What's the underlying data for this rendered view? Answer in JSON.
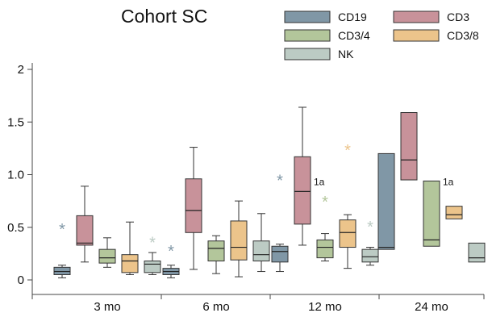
{
  "chart_data": {
    "type": "box",
    "title": "Cohort SC",
    "xlabel": "",
    "ylabel": "",
    "categories": [
      "3 mo",
      "6 mo",
      "12 mo",
      "24 mo"
    ],
    "ylim": [
      -0.1,
      2.05
    ],
    "yticks": [
      0,
      0.5,
      1.0,
      1.5,
      2
    ],
    "ytick_labels": [
      "0",
      "0.5",
      "1.0",
      "1.5",
      "2"
    ],
    "legend_position": "top-right",
    "series": [
      {
        "name": "CD19",
        "color": "#8097a6",
        "boxes": [
          {
            "min": 0.02,
            "q1": 0.05,
            "median": 0.08,
            "q3": 0.12,
            "max": 0.14
          },
          {
            "min": 0.02,
            "q1": 0.05,
            "median": 0.08,
            "q3": 0.11,
            "max": 0.14
          },
          {
            "min": 0.08,
            "q1": 0.17,
            "median": 0.27,
            "q3": 0.32,
            "max": 0.34
          },
          {
            "min": 0.29,
            "q1": 0.29,
            "median": 0.31,
            "q3": 1.2,
            "max": 1.2
          }
        ]
      },
      {
        "name": "CD3",
        "color": "#c8929a",
        "boxes": [
          {
            "min": 0.17,
            "q1": 0.33,
            "median": 0.35,
            "q3": 0.61,
            "max": 0.89
          },
          {
            "min": 0.1,
            "q1": 0.45,
            "median": 0.66,
            "q3": 0.96,
            "max": 1.26
          },
          {
            "min": 0.33,
            "q1": 0.53,
            "median": 0.84,
            "q3": 1.17,
            "max": 1.64
          },
          {
            "min": 0.95,
            "q1": 0.95,
            "median": 1.14,
            "q3": 1.59,
            "max": 1.59
          }
        ]
      },
      {
        "name": "CD3/4",
        "color": "#b3c69b",
        "boxes": [
          {
            "min": 0.12,
            "q1": 0.16,
            "median": 0.21,
            "q3": 0.29,
            "max": 0.4
          },
          {
            "min": 0.06,
            "q1": 0.18,
            "median": 0.3,
            "q3": 0.37,
            "max": 0.42
          },
          {
            "min": 0.18,
            "q1": 0.21,
            "median": 0.31,
            "q3": 0.38,
            "max": 0.44
          },
          {
            "min": 0.32,
            "q1": 0.32,
            "median": 0.38,
            "q3": 0.94,
            "max": 0.94
          }
        ]
      },
      {
        "name": "CD3/8",
        "color": "#ecc48b",
        "boxes": [
          {
            "min": 0.05,
            "q1": 0.07,
            "median": 0.18,
            "q3": 0.24,
            "max": 0.55
          },
          {
            "min": 0.03,
            "q1": 0.19,
            "median": 0.31,
            "q3": 0.56,
            "max": 0.75
          },
          {
            "min": 0.11,
            "q1": 0.31,
            "median": 0.45,
            "q3": 0.57,
            "max": 0.62
          },
          {
            "min": 0.58,
            "q1": 0.58,
            "median": 0.62,
            "q3": 0.7,
            "max": 0.7
          }
        ]
      },
      {
        "name": "NK",
        "color": "#bccbc4",
        "boxes": [
          {
            "min": 0.05,
            "q1": 0.07,
            "median": 0.15,
            "q3": 0.18,
            "max": 0.26
          },
          {
            "min": 0.08,
            "q1": 0.18,
            "median": 0.24,
            "q3": 0.37,
            "max": 0.63
          },
          {
            "min": 0.14,
            "q1": 0.17,
            "median": 0.22,
            "q3": 0.29,
            "max": 0.31
          },
          {
            "min": 0.17,
            "q1": 0.17,
            "median": 0.21,
            "q3": 0.35,
            "max": 0.35
          }
        ]
      }
    ],
    "outliers": [
      {
        "category": "3 mo",
        "series": "CD19",
        "y": 0.5
      },
      {
        "category": "3 mo",
        "series": "NK",
        "y": 0.37
      },
      {
        "category": "6 mo",
        "series": "CD19",
        "y": 0.29
      },
      {
        "category": "12 mo",
        "series": "CD19",
        "y": 0.96
      },
      {
        "category": "12 mo",
        "series": "CD3/4",
        "y": 0.76
      },
      {
        "category": "12 mo",
        "series": "CD3/8",
        "y": 1.25
      },
      {
        "category": "12 mo",
        "series": "NK",
        "y": 0.52
      }
    ],
    "annotations": [
      {
        "text": "1a",
        "category": "12 mo",
        "series": "CD3",
        "y": 0.93
      },
      {
        "text": "1a",
        "category": "24 mo",
        "series": "CD3/4",
        "y": 0.93
      }
    ]
  }
}
